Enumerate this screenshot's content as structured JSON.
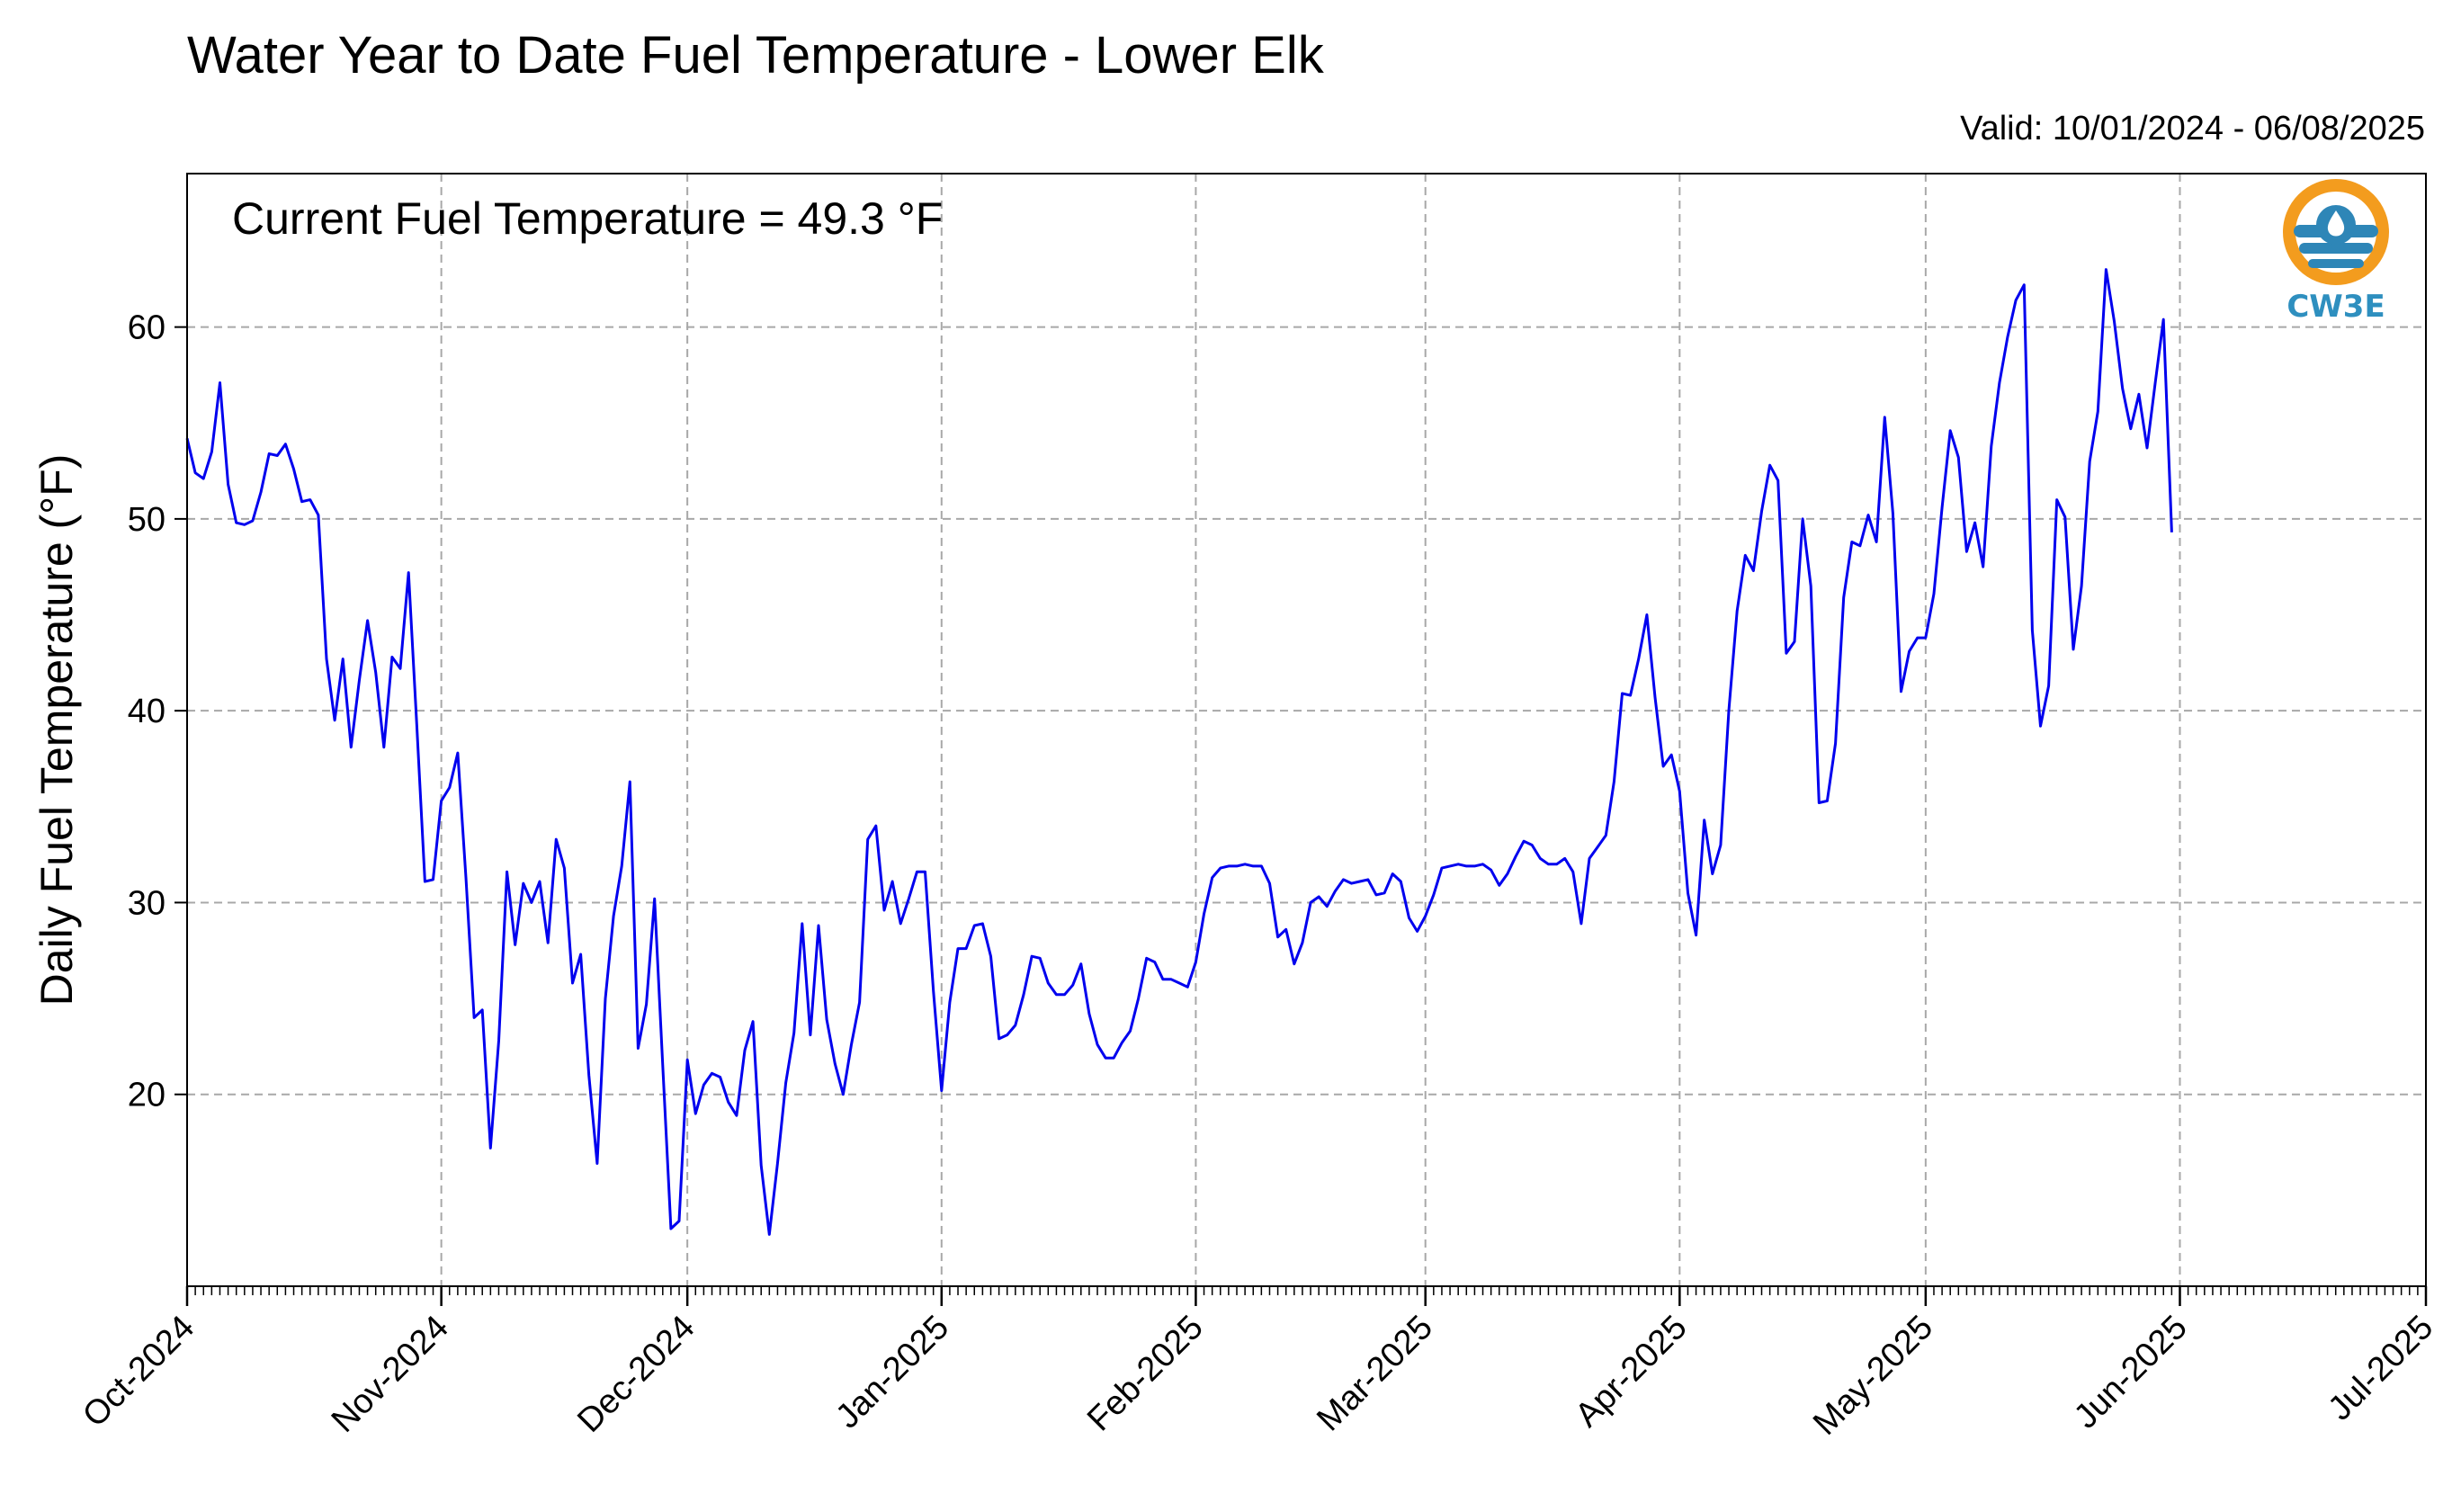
{
  "chart_data": {
    "type": "line",
    "title": "Water Year to Date Fuel Temperature - Lower Elk",
    "subtitle": "Valid: 10/01/2024 - 06/08/2025",
    "xlabel": "",
    "ylabel": "Daily Fuel Temperature ( $^\\circ$F)",
    "ylabel_display": "Daily Fuel Temperature (°F)",
    "annotation": "Current Fuel Temperature = 49.3 °F",
    "logo_text": "CW3E",
    "line_color": "#0000ee",
    "logo_colors": {
      "ring": "#f39c1e",
      "water": "#2e86b7",
      "text": "#2e8fbf"
    },
    "grid": true,
    "xlim": [
      "2024-10-01",
      "2025-07-01"
    ],
    "ylim": [
      10,
      68
    ],
    "yticks": [
      20,
      30,
      40,
      50,
      60
    ],
    "xticks": [
      {
        "date": "2024-10-01",
        "label": "Oct-2024"
      },
      {
        "date": "2024-11-01",
        "label": "Nov-2024"
      },
      {
        "date": "2024-12-01",
        "label": "Dec-2024"
      },
      {
        "date": "2025-01-01",
        "label": "Jan-2025"
      },
      {
        "date": "2025-02-01",
        "label": "Feb-2025"
      },
      {
        "date": "2025-03-01",
        "label": "Mar-2025"
      },
      {
        "date": "2025-04-01",
        "label": "Apr-2025"
      },
      {
        "date": "2025-05-01",
        "label": "May-2025"
      },
      {
        "date": "2025-06-01",
        "label": "Jun-2025"
      },
      {
        "date": "2025-07-01",
        "label": "Jul-2025"
      }
    ],
    "series": [
      {
        "start_date": "2024-10-01",
        "values": [
          54.2,
          52.4,
          52.1,
          53.5,
          57.1,
          51.8,
          49.8,
          49.7,
          49.9,
          51.4,
          53.4,
          53.3,
          53.9,
          52.6,
          50.9,
          51.0,
          50.2,
          42.7,
          39.5,
          42.7,
          38.1,
          41.6,
          44.7,
          42.0,
          38.1,
          42.8,
          42.2,
          47.2,
          39.3,
          31.1,
          31.2,
          35.3,
          36.0,
          37.8,
          31.3,
          24.0,
          24.4,
          17.2,
          22.8,
          31.6,
          27.8,
          31.0,
          30.0,
          31.1,
          27.9,
          33.3,
          31.8,
          25.8,
          27.3,
          21.0,
          16.4,
          25.0,
          29.3,
          31.9,
          36.3,
          22.4,
          24.7,
          30.2,
          21.5,
          13.0,
          13.4,
          21.8,
          19.0,
          20.5,
          21.1,
          20.9,
          19.6,
          18.9,
          22.3,
          23.8,
          16.3,
          12.7,
          16.4,
          20.6,
          23.2,
          28.9,
          23.1,
          28.8,
          23.9,
          21.6,
          20.0,
          22.6,
          24.8,
          33.3,
          34.0,
          29.6,
          31.1,
          28.9,
          30.2,
          31.6,
          31.6,
          25.4,
          20.2,
          24.8,
          27.6,
          27.6,
          28.8,
          28.9,
          27.2,
          22.9,
          23.1,
          23.6,
          25.2,
          27.2,
          27.1,
          25.8,
          25.2,
          25.2,
          25.7,
          26.8,
          24.2,
          22.6,
          21.9,
          21.9,
          22.7,
          23.3,
          25.0,
          27.1,
          26.9,
          26.0,
          26.0,
          25.8,
          25.6,
          26.9,
          29.4,
          31.3,
          31.8,
          31.9,
          31.9,
          32.0,
          31.9,
          31.9,
          31.0,
          28.2,
          28.6,
          26.8,
          27.9,
          30.0,
          30.3,
          29.8,
          30.6,
          31.2,
          31.0,
          31.1,
          31.2,
          30.4,
          30.5,
          31.5,
          31.1,
          29.2,
          28.5,
          29.3,
          30.4,
          31.8,
          31.9,
          32.0,
          31.9,
          31.9,
          32.0,
          31.7,
          30.9,
          31.5,
          32.4,
          33.2,
          33.0,
          32.3,
          32.0,
          32.0,
          32.3,
          31.6,
          28.9,
          32.3,
          32.9,
          33.5,
          36.3,
          40.9,
          40.8,
          42.7,
          45.0,
          40.7,
          37.1,
          37.7,
          35.8,
          30.5,
          28.3,
          34.3,
          31.5,
          33.0,
          40.0,
          45.2,
          48.1,
          47.3,
          50.4,
          52.8,
          52.0,
          43.0,
          43.6,
          50.0,
          46.5,
          35.2,
          35.3,
          38.3,
          45.9,
          48.8,
          48.6,
          50.2,
          48.8,
          55.3,
          50.3,
          41.0,
          43.1,
          43.8,
          43.8,
          46.1,
          50.6,
          54.6,
          53.2,
          48.3,
          49.8,
          47.5,
          53.8,
          57.1,
          59.5,
          61.4,
          62.2,
          44.2,
          39.2,
          41.3,
          51.0,
          50.1,
          43.2,
          46.5,
          53.0,
          55.6,
          63.0,
          60.3,
          56.8,
          54.7,
          56.5,
          53.7,
          57.1,
          60.4,
          49.3
        ]
      }
    ]
  }
}
